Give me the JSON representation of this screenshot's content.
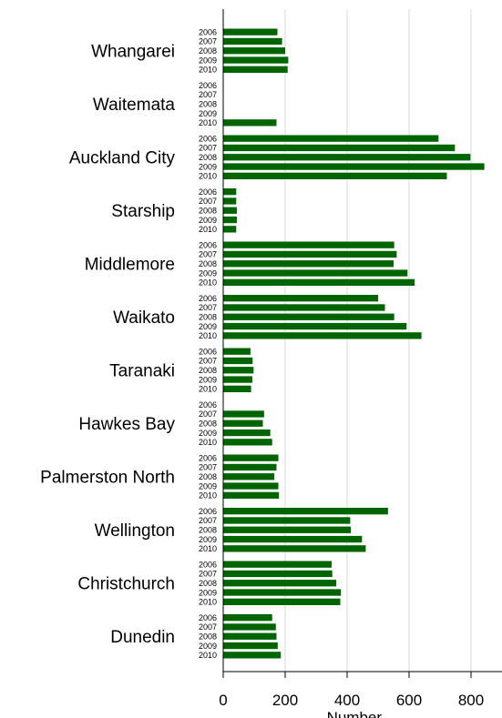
{
  "chart_data": {
    "type": "bar",
    "orientation": "horizontal",
    "xlabel": "Number",
    "xlim": [
      0,
      900
    ],
    "xticks": [
      0,
      200,
      400,
      600,
      800
    ],
    "years": [
      "2006",
      "2007",
      "2008",
      "2009",
      "2010"
    ],
    "bar_color": "#006400",
    "grid": true,
    "categories": [
      "Whangarei",
      "Waitemata",
      "Auckland City",
      "Starship",
      "Middlemore",
      "Waikato",
      "Taranaki",
      "Hawkes Bay",
      "Palmerston North",
      "Wellington",
      "Christchurch",
      "Dunedin"
    ],
    "groups": [
      {
        "name": "Whangarei",
        "values": [
          175,
          190,
          200,
          210,
          208
        ]
      },
      {
        "name": "Waitemata",
        "values": [
          0,
          0,
          0,
          0,
          172
        ]
      },
      {
        "name": "Auckland City",
        "values": [
          695,
          748,
          798,
          843,
          722
        ]
      },
      {
        "name": "Starship",
        "values": [
          42,
          42,
          44,
          44,
          42
        ]
      },
      {
        "name": "Middlemore",
        "values": [
          552,
          560,
          550,
          595,
          618
        ]
      },
      {
        "name": "Waikato",
        "values": [
          500,
          522,
          552,
          592,
          640
        ]
      },
      {
        "name": "Taranaki",
        "values": [
          88,
          95,
          98,
          94,
          90
        ]
      },
      {
        "name": "Hawkes Bay",
        "values": [
          0,
          132,
          128,
          152,
          158
        ]
      },
      {
        "name": "Palmerston North",
        "values": [
          178,
          172,
          165,
          178,
          180
        ]
      },
      {
        "name": "Wellington",
        "values": [
          532,
          410,
          412,
          448,
          460
        ]
      },
      {
        "name": "Christchurch",
        "values": [
          350,
          352,
          365,
          380,
          378
        ]
      },
      {
        "name": "Dunedin",
        "values": [
          158,
          170,
          172,
          176,
          186
        ]
      }
    ]
  }
}
